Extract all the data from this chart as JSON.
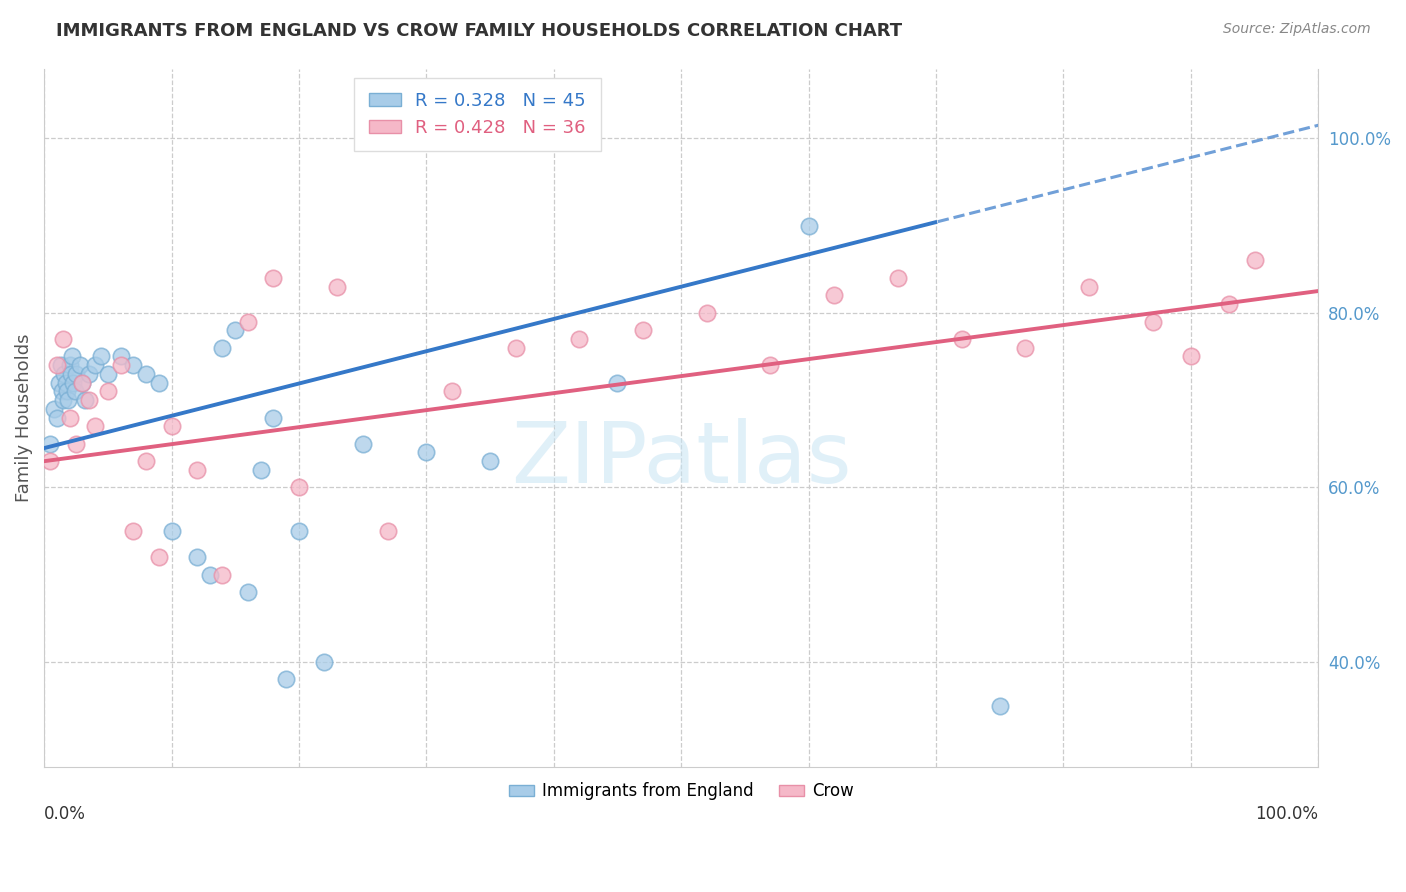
{
  "title": "IMMIGRANTS FROM ENGLAND VS CROW FAMILY HOUSEHOLDS CORRELATION CHART",
  "source": "Source: ZipAtlas.com",
  "ylabel": "Family Households",
  "blue_R": 0.328,
  "blue_N": 45,
  "pink_R": 0.428,
  "pink_N": 36,
  "blue_color": "#a8cce8",
  "blue_edge": "#7aafd4",
  "pink_color": "#f5b8c8",
  "pink_edge": "#e890a8",
  "blue_line": "#3578c8",
  "pink_line": "#e06080",
  "grid_color": "#cccccc",
  "watermark_color": "#c8e4f4",
  "title_color": "#333333",
  "source_color": "#888888",
  "right_axis_color": "#5599cc",
  "xlim": [
    0,
    100
  ],
  "ylim": [
    28,
    108
  ],
  "right_ytick_vals": [
    40,
    60,
    80,
    100
  ],
  "right_yticklabels": [
    "40.0%",
    "60.0%",
    "80.0%",
    "100.0%"
  ],
  "blue_x": [
    0.5,
    0.8,
    1.0,
    1.2,
    1.3,
    1.4,
    1.5,
    1.6,
    1.7,
    1.8,
    1.9,
    2.0,
    2.1,
    2.2,
    2.3,
    2.4,
    2.5,
    2.8,
    3.0,
    3.2,
    3.5,
    4.0,
    4.5,
    5.0,
    6.0,
    7.0,
    8.0,
    9.0,
    10.0,
    12.0,
    13.0,
    14.0,
    15.0,
    16.0,
    17.0,
    18.0,
    19.0,
    20.0,
    22.0,
    25.0,
    30.0,
    35.0,
    45.0,
    60.0,
    75.0
  ],
  "blue_y": [
    65,
    69,
    68,
    72,
    74,
    71,
    70,
    73,
    72,
    71,
    70,
    74,
    73,
    75,
    72,
    71,
    73,
    74,
    72,
    70,
    73,
    74,
    75,
    73,
    75,
    74,
    73,
    72,
    55,
    52,
    50,
    76,
    78,
    48,
    62,
    68,
    38,
    55,
    40,
    65,
    64,
    63,
    72,
    90,
    35
  ],
  "pink_x": [
    0.5,
    1.0,
    1.5,
    2.0,
    2.5,
    3.0,
    3.5,
    4.0,
    5.0,
    6.0,
    7.0,
    8.0,
    9.0,
    10.0,
    12.0,
    14.0,
    16.0,
    18.0,
    20.0,
    23.0,
    27.0,
    32.0,
    37.0,
    42.0,
    47.0,
    52.0,
    57.0,
    62.0,
    67.0,
    72.0,
    77.0,
    82.0,
    87.0,
    90.0,
    93.0,
    95.0
  ],
  "pink_y": [
    63,
    74,
    77,
    68,
    65,
    72,
    70,
    67,
    71,
    74,
    55,
    63,
    52,
    67,
    62,
    50,
    79,
    84,
    60,
    83,
    55,
    71,
    76,
    77,
    78,
    80,
    74,
    82,
    84,
    77,
    76,
    83,
    79,
    75,
    81,
    86
  ]
}
